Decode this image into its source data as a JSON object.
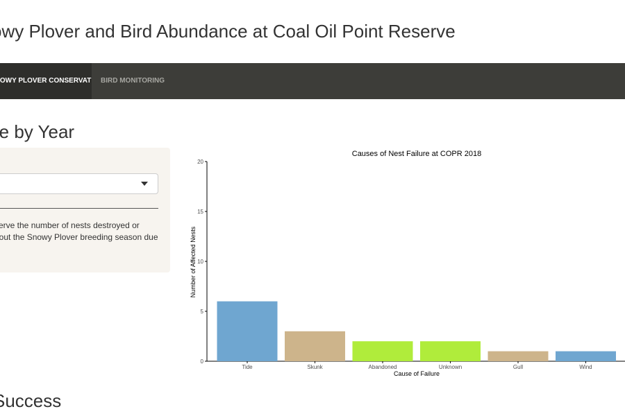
{
  "header": {
    "title": "owy Plover and Bird Abundance at Coal Oil Point Reserve"
  },
  "nav": {
    "tabs": [
      {
        "label": "SNOWY PLOVER CONSERVATION",
        "active": true
      },
      {
        "label": "BIRD MONITORING",
        "active": false
      }
    ]
  },
  "sections": {
    "failure_title": "re by Year",
    "success_title": "Success"
  },
  "sidebar": {
    "select": {
      "value": "",
      "icon": "caret-down-icon"
    },
    "text_line1": "serve the number of nests destroyed or",
    "text_line2": "hout the Snowy Plover breeding season due"
  },
  "colors": {
    "navbar": "#3d3d39",
    "navbar_active": "#2e2e2b",
    "sidebar_bg": "#f7f4ef"
  },
  "chart_data": {
    "type": "bar",
    "title": "Causes of Nest Failure at COPR 2018",
    "xlabel": "Cause of Failure",
    "ylabel": "Number of Affected Nests",
    "categories": [
      "Tide",
      "Skunk",
      "Abandoned",
      "Unknown",
      "Gull",
      "Wind"
    ],
    "values": [
      6,
      3,
      2,
      2,
      1,
      1
    ],
    "bar_colors": [
      "#6fa6d0",
      "#cdb48b",
      "#b0ec3b",
      "#b0ec3b",
      "#cdb48b",
      "#6fa6d0"
    ],
    "ylim": [
      0,
      20
    ],
    "yticks": [
      0,
      5,
      10,
      15,
      20
    ],
    "grid": false,
    "legend": "none"
  }
}
